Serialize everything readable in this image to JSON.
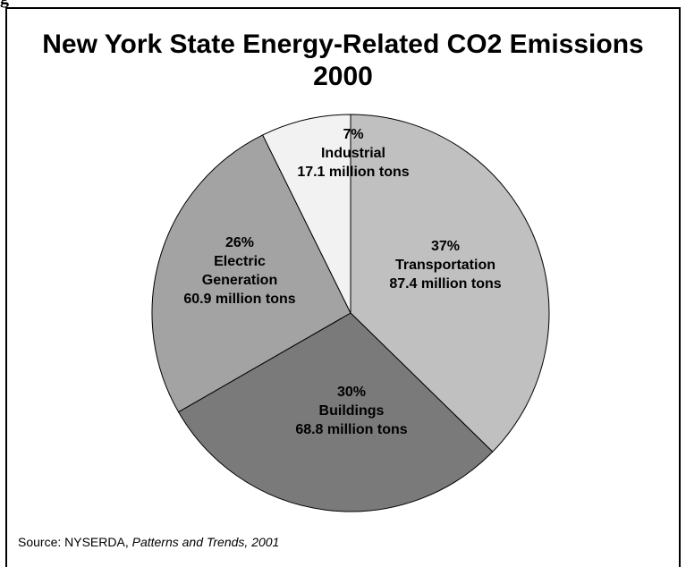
{
  "figure_label": "g",
  "chart_data": {
    "type": "pie",
    "title_lines": [
      "New York State Energy-Related CO2 Emissions",
      "2000"
    ],
    "slices": [
      {
        "name": "Transportation",
        "percent_label": "37%",
        "value_label": "87.4 million tons",
        "value": 87.4,
        "color": "#c0c0c0"
      },
      {
        "name": "Buildings",
        "percent_label": "30%",
        "value_label": "68.8 million tons",
        "value": 68.8,
        "color": "#7a7a7a"
      },
      {
        "name": "Electric Generation",
        "name_lines": [
          "Electric",
          "Generation"
        ],
        "percent_label": "26%",
        "value_label": "60.9 million tons",
        "value": 60.9,
        "color": "#a3a3a3"
      },
      {
        "name": "Industrial",
        "percent_label": "7%",
        "value_label": "17.1 million tons",
        "value": 17.1,
        "color": "#f2f2f2"
      }
    ]
  },
  "source": {
    "prefix": "Source: NYSERDA, ",
    "italic": "Patterns and Trends, 2001"
  }
}
